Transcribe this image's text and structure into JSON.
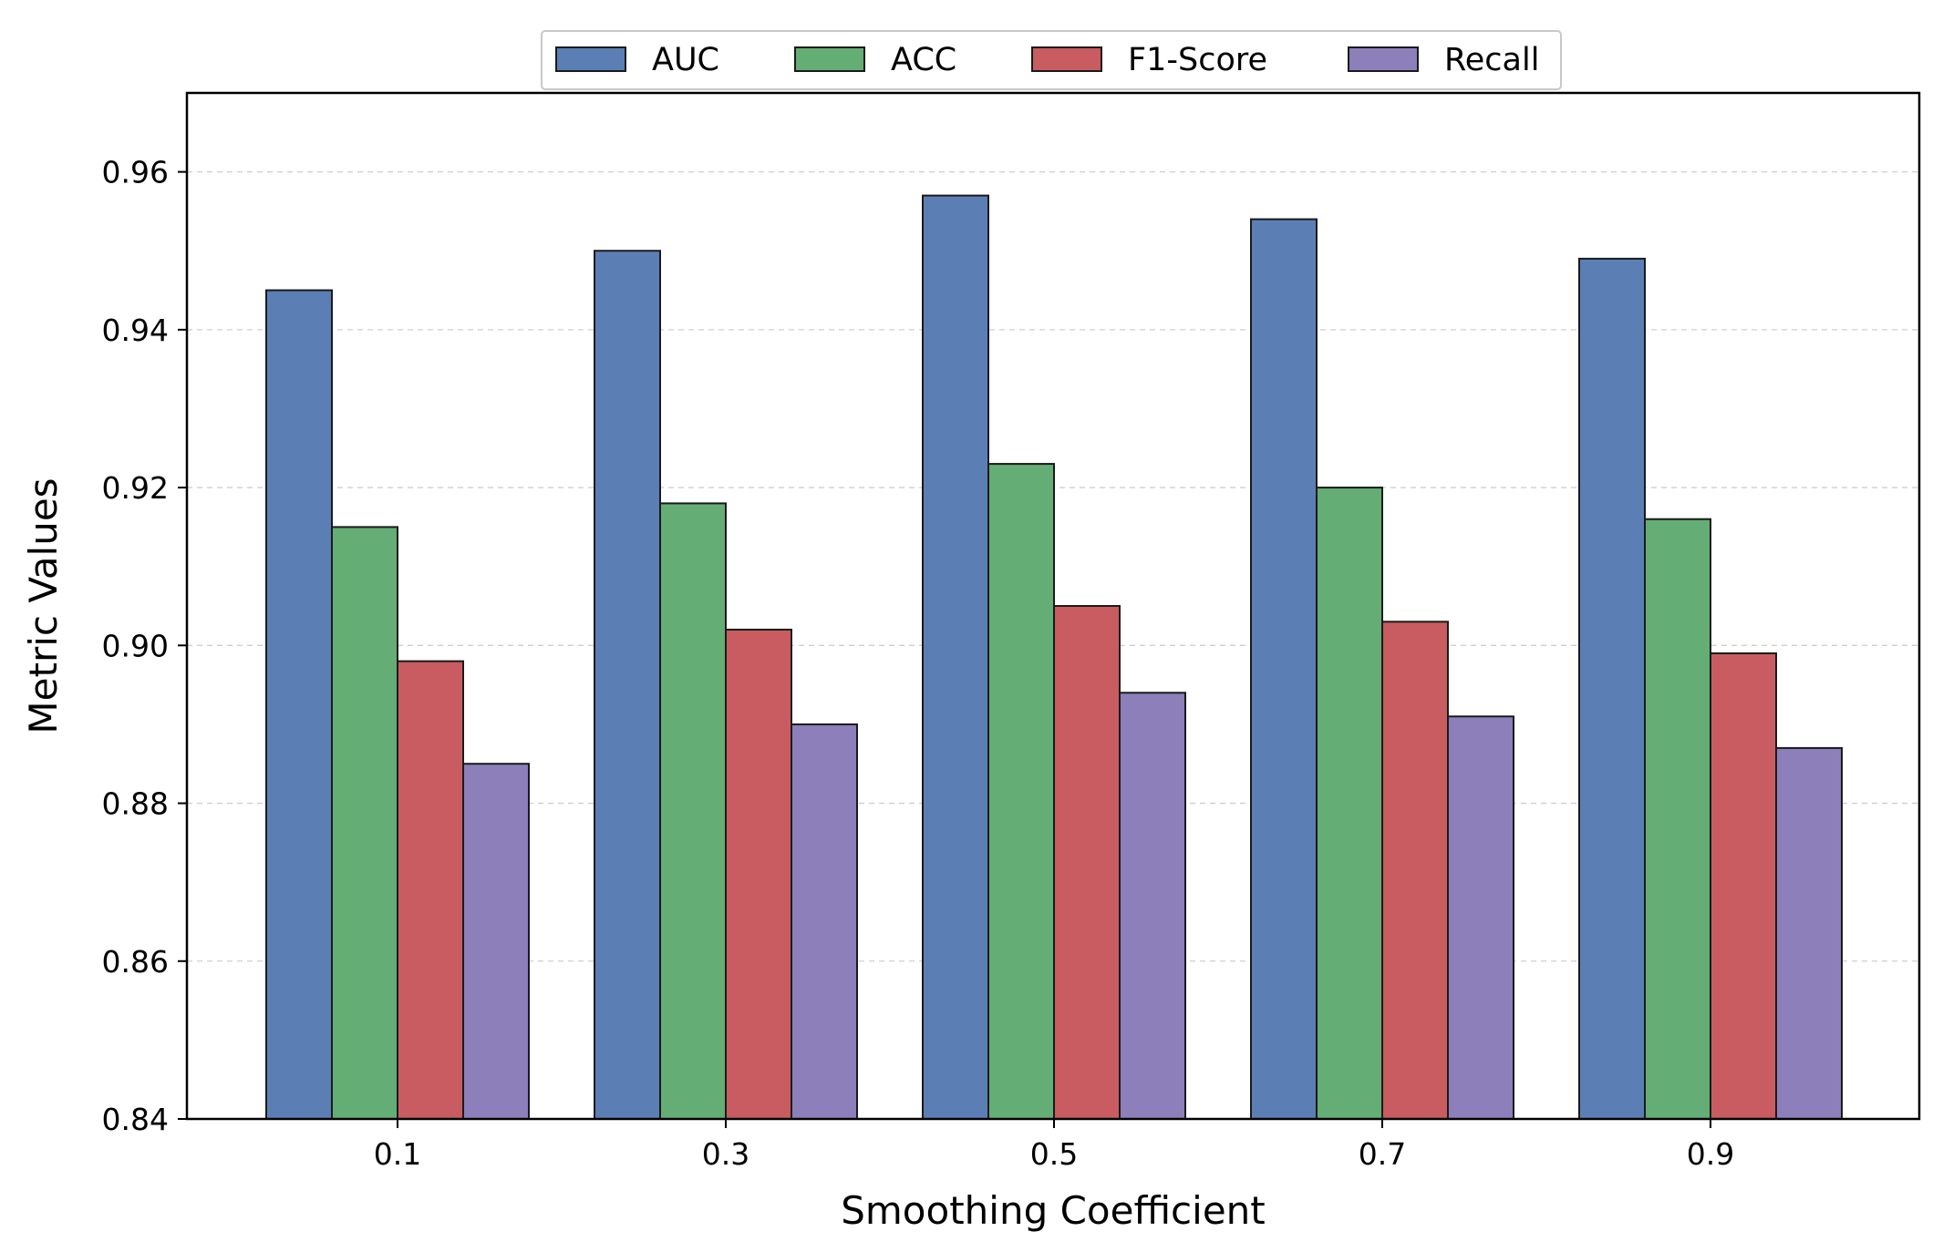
{
  "chart_data": {
    "type": "bar",
    "title": "",
    "xlabel": "Smoothing Coefficient",
    "ylabel": "Metric Values",
    "categories": [
      "0.1",
      "0.3",
      "0.5",
      "0.7",
      "0.9"
    ],
    "ylim": [
      0.84,
      0.97
    ],
    "yticks": [
      0.84,
      0.86,
      0.88,
      0.9,
      0.92,
      0.94,
      0.96
    ],
    "ytick_labels": [
      "0.84",
      "0.86",
      "0.88",
      "0.90",
      "0.92",
      "0.94",
      "0.96"
    ],
    "grid": true,
    "legend_position": "top-center",
    "series": [
      {
        "name": "AUC",
        "color": "#5b7fb5",
        "values": [
          0.945,
          0.95,
          0.957,
          0.954,
          0.949
        ]
      },
      {
        "name": "ACC",
        "color": "#64ad74",
        "values": [
          0.915,
          0.918,
          0.923,
          0.92,
          0.916
        ]
      },
      {
        "name": "F1-Score",
        "color": "#c85c60",
        "values": [
          0.898,
          0.902,
          0.905,
          0.903,
          0.899
        ]
      },
      {
        "name": "Recall",
        "color": "#8c7fba",
        "values": [
          0.885,
          0.89,
          0.894,
          0.891,
          0.887
        ]
      }
    ]
  }
}
